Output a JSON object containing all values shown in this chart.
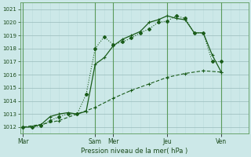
{
  "xlabel": "Pression niveau de la mer( hPa )",
  "background_color": "#cce8e8",
  "grid_color_major": "#99bbbb",
  "grid_color_minor": "#bbdddd",
  "line_color": "#1a5c1a",
  "line_color_thin": "#2d7a2d",
  "ylim": [
    1011.5,
    1021.5
  ],
  "yticks": [
    1012,
    1013,
    1014,
    1015,
    1016,
    1017,
    1018,
    1019,
    1020,
    1021
  ],
  "day_labels": [
    "Mar",
    "Sam",
    "Mer",
    "Jeu",
    "Ven"
  ],
  "day_positions": [
    0,
    48,
    60,
    96,
    132
  ],
  "xlim_pts": [
    0,
    144
  ],
  "line1_pts": [
    0,
    6,
    12,
    18,
    24,
    30,
    36,
    42,
    48,
    54,
    60,
    66,
    72,
    78,
    84,
    90,
    96,
    102,
    108,
    114,
    120,
    126,
    132
  ],
  "line1_y": [
    1012.0,
    1012.0,
    1012.1,
    1012.5,
    1012.8,
    1013.0,
    1013.0,
    1014.5,
    1018.0,
    1018.9,
    1018.3,
    1018.5,
    1018.8,
    1019.2,
    1019.5,
    1020.0,
    1020.1,
    1020.5,
    1020.3,
    1019.2,
    1019.2,
    1017.0,
    1017.0
  ],
  "line2_pts": [
    0,
    6,
    12,
    18,
    24,
    30,
    36,
    42,
    48,
    54,
    60,
    66,
    72,
    78,
    84,
    90,
    96,
    102,
    108,
    114,
    120,
    126,
    132
  ],
  "line2_y": [
    1012.0,
    1012.0,
    1012.2,
    1012.8,
    1013.0,
    1013.1,
    1013.0,
    1013.2,
    1016.8,
    1017.3,
    1018.2,
    1018.7,
    1019.0,
    1019.3,
    1020.0,
    1020.2,
    1020.5,
    1020.3,
    1020.2,
    1019.2,
    1019.2,
    1017.5,
    1016.2
  ],
  "line3_pts": [
    0,
    12,
    24,
    36,
    48,
    60,
    72,
    84,
    96,
    108,
    120,
    132
  ],
  "line3_y": [
    1012.0,
    1012.2,
    1012.5,
    1013.0,
    1013.5,
    1014.2,
    1014.8,
    1015.3,
    1015.8,
    1016.1,
    1016.3,
    1016.2
  ]
}
